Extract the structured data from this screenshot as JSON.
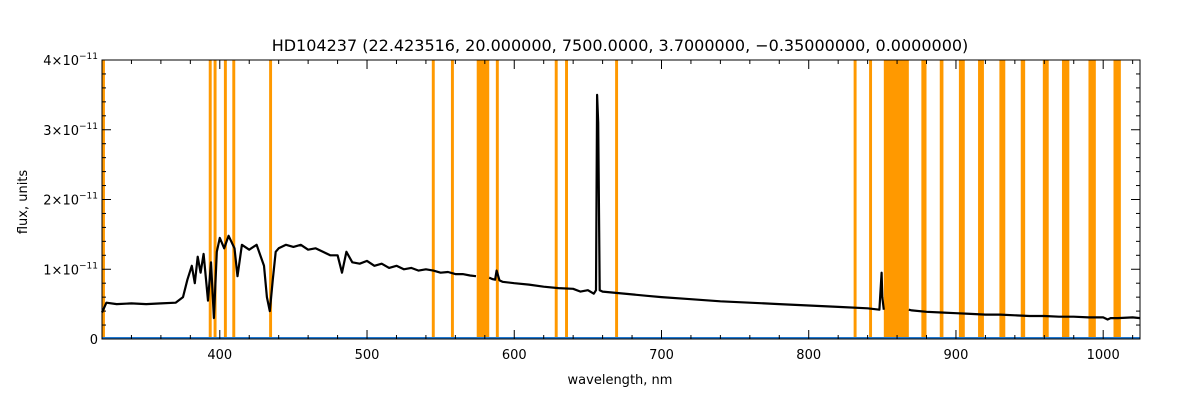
{
  "chart_data": {
    "type": "line",
    "title": "HD104237   (22.423516, 20.000000, 7500.0000, 3.7000000, −0.35000000, 0.0000000)",
    "xlabel": "wavelength, nm",
    "ylabel": "flux, units",
    "xlim": [
      320,
      1025
    ],
    "ylim": [
      0,
      4e-11
    ],
    "x_ticks": [
      400,
      500,
      600,
      700,
      800,
      900,
      1000
    ],
    "y_ticks": [
      {
        "value": 0,
        "mantissa": "0",
        "exponent": ""
      },
      {
        "value": 1e-11,
        "mantissa": "1×10",
        "exponent": "−11"
      },
      {
        "value": 2e-11,
        "mantissa": "2×10",
        "exponent": "−11"
      },
      {
        "value": 3e-11,
        "mantissa": "3×10",
        "exponent": "−11"
      },
      {
        "value": 4e-11,
        "mantissa": "4×10",
        "exponent": "−11"
      }
    ],
    "grid": false,
    "colors": {
      "spectrum": "#000000",
      "bands": "#ff9900",
      "baseline": "#1f77d0"
    },
    "masked_bands": [
      [
        320,
        322
      ],
      [
        392.5,
        394.5
      ],
      [
        395.8,
        397.8
      ],
      [
        402.8,
        404.8
      ],
      [
        408.5,
        410.5
      ],
      [
        433.5,
        435.5
      ],
      [
        544,
        546
      ],
      [
        557,
        559
      ],
      [
        574.5,
        583
      ],
      [
        587.5,
        589.5
      ],
      [
        627.5,
        629.5
      ],
      [
        634.5,
        636.5
      ],
      [
        668.5,
        670.5
      ],
      [
        830.5,
        832.5
      ],
      [
        841,
        843
      ],
      [
        851,
        868
      ],
      [
        876.5,
        880
      ],
      [
        889,
        891.5
      ],
      [
        902,
        906
      ],
      [
        915,
        919
      ],
      [
        929.5,
        933.5
      ],
      [
        944,
        947
      ],
      [
        959,
        963
      ],
      [
        972,
        977
      ],
      [
        990,
        995
      ],
      [
        1007,
        1012
      ]
    ],
    "series": [
      {
        "x": [
          320,
          323,
          330,
          340,
          350,
          360,
          370,
          375,
          378,
          381,
          383,
          385,
          387,
          389,
          392,
          394,
          396,
          398,
          400,
          403,
          406,
          410,
          412,
          415,
          420,
          425,
          430,
          432,
          434,
          436,
          438,
          440,
          445,
          450,
          455,
          460,
          465,
          470,
          475,
          480,
          483,
          486,
          490,
          495,
          500,
          505,
          510,
          515,
          520,
          525,
          530,
          535,
          540,
          545,
          550,
          555,
          560,
          565,
          570,
          574,
          583,
          585,
          587,
          588,
          590,
          592,
          600,
          610,
          620,
          630,
          640,
          645,
          650,
          654,
          655.5,
          656.3,
          657,
          658,
          660,
          670,
          680,
          690,
          700,
          720,
          740,
          760,
          780,
          800,
          820,
          840,
          848,
          849.5,
          850,
          851,
          868,
          870,
          880,
          890,
          900,
          910,
          920,
          930,
          940,
          950,
          960,
          970,
          980,
          990,
          1000,
          1003,
          1005,
          1010,
          1020,
          1025
        ],
        "y": [
          3.8e-12,
          5.2e-12,
          5e-12,
          5.1e-12,
          5e-12,
          5.1e-12,
          5.2e-12,
          6e-12,
          8.5e-12,
          1.05e-11,
          8e-12,
          1.18e-11,
          9.5e-12,
          1.22e-11,
          5.5e-12,
          1.1e-11,
          3e-12,
          1.25e-11,
          1.45e-11,
          1.3e-11,
          1.48e-11,
          1.3e-11,
          9e-12,
          1.35e-11,
          1.28e-11,
          1.35e-11,
          1.05e-11,
          6e-12,
          4e-12,
          8.5e-12,
          1.25e-11,
          1.3e-11,
          1.35e-11,
          1.32e-11,
          1.35e-11,
          1.28e-11,
          1.3e-11,
          1.25e-11,
          1.2e-11,
          1.2e-11,
          9.5e-12,
          1.25e-11,
          1.1e-11,
          1.08e-11,
          1.12e-11,
          1.05e-11,
          1.08e-11,
          1.02e-11,
          1.05e-11,
          1e-11,
          1.02e-11,
          9.8e-12,
          1e-11,
          9.8e-12,
          9.5e-12,
          9.6e-12,
          9.3e-12,
          9.3e-12,
          9.1e-12,
          9e-12,
          8.8e-12,
          8.6e-12,
          8.5e-12,
          9.8e-12,
          8.4e-12,
          8.2e-12,
          8e-12,
          7.8e-12,
          7.5e-12,
          7.3e-12,
          7.2e-12,
          6.8e-12,
          7e-12,
          6.5e-12,
          7e-12,
          3.5e-11,
          3.1e-11,
          7e-12,
          6.8e-12,
          6.6e-12,
          6.4e-12,
          6.2e-12,
          6e-12,
          5.7e-12,
          5.4e-12,
          5.2e-12,
          5e-12,
          4.8e-12,
          4.6e-12,
          4.4e-12,
          4.2e-12,
          9.5e-12,
          6e-12,
          4.2e-12,
          4.2e-12,
          4.1e-12,
          3.9e-12,
          3.8e-12,
          3.7e-12,
          3.6e-12,
          3.5e-12,
          3.5e-12,
          3.4e-12,
          3.3e-12,
          3.3e-12,
          3.2e-12,
          3.2e-12,
          3.1e-12,
          3.1e-12,
          2.8e-12,
          3e-12,
          3e-12,
          3.1e-12,
          3e-12
        ],
        "gaps": [
          [
            574,
            583
          ],
          [
            851,
            868
          ]
        ]
      }
    ]
  }
}
